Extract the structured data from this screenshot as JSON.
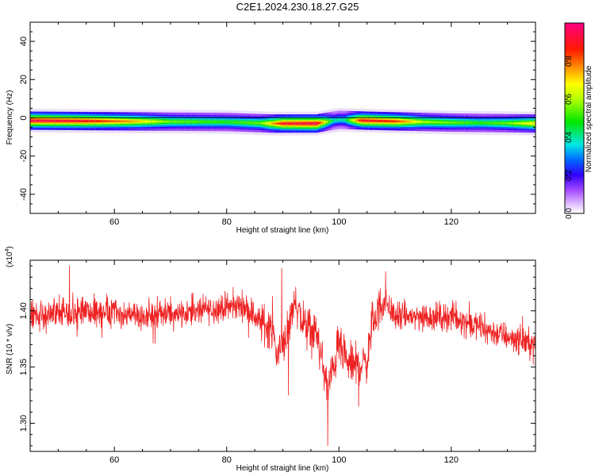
{
  "title": "C2E1.2024.230.18.27.G25",
  "chart_data": [
    {
      "type": "heatmap",
      "xlabel": "Height of straight line (km)",
      "ylabel": "Frequency (Hz)",
      "xlim": [
        45,
        135
      ],
      "ylim": [
        -50,
        50
      ],
      "xticks": [
        60,
        80,
        100,
        120
      ],
      "yticks": [
        -40,
        -20,
        0,
        20,
        40
      ],
      "colorbar": {
        "label": "Normalized spectral amplitude",
        "range": [
          0,
          1
        ],
        "ticks": [
          "0.0",
          "0.2",
          "0.4",
          "0.6",
          "0.8"
        ]
      },
      "band": {
        "center_hz": [
          {
            "x": 45,
            "f": -1.5
          },
          {
            "x": 60,
            "f": -1.8
          },
          {
            "x": 80,
            "f": -2.2
          },
          {
            "x": 88,
            "f": -3
          },
          {
            "x": 96,
            "f": -3
          },
          {
            "x": 100,
            "f": -1
          },
          {
            "x": 105,
            "f": -1.5
          },
          {
            "x": 120,
            "f": -2.5
          },
          {
            "x": 135,
            "f": -3
          }
        ],
        "intensity": [
          {
            "x": 45,
            "v": 0.95
          },
          {
            "x": 55,
            "v": 0.9
          },
          {
            "x": 63,
            "v": 0.75
          },
          {
            "x": 70,
            "v": 0.55
          },
          {
            "x": 80,
            "v": 0.5
          },
          {
            "x": 86,
            "v": 0.55
          },
          {
            "x": 90,
            "v": 0.9
          },
          {
            "x": 96,
            "v": 0.95
          },
          {
            "x": 99,
            "v": 0.4
          },
          {
            "x": 101,
            "v": 0.4
          },
          {
            "x": 104,
            "v": 0.9
          },
          {
            "x": 110,
            "v": 0.85
          },
          {
            "x": 115,
            "v": 0.6
          },
          {
            "x": 125,
            "v": 0.5
          },
          {
            "x": 130,
            "v": 0.55
          },
          {
            "x": 135,
            "v": 0.7
          }
        ]
      }
    },
    {
      "type": "line",
      "xlabel": "Height of straight line (km)",
      "ylabel": "SNR (10 * v/v)",
      "ymultiplier": "(x10",
      "ymultiplier_exp": "4",
      "xlim": [
        45,
        135
      ],
      "ylim": [
        1.275,
        1.445
      ],
      "xticks": [
        60,
        80,
        100,
        120
      ],
      "yticks": [
        "1.30",
        "1.35",
        "1.40"
      ],
      "ytick_values": [
        1.3,
        1.35,
        1.4
      ],
      "series": [
        {
          "color": "#ee2222",
          "trend": [
            {
              "x": 45,
              "y": 1.395
            },
            {
              "x": 55,
              "y": 1.4
            },
            {
              "x": 65,
              "y": 1.395
            },
            {
              "x": 75,
              "y": 1.4
            },
            {
              "x": 83,
              "y": 1.405
            },
            {
              "x": 86,
              "y": 1.39
            },
            {
              "x": 88,
              "y": 1.385
            },
            {
              "x": 89,
              "y": 1.36
            },
            {
              "x": 91,
              "y": 1.385
            },
            {
              "x": 92,
              "y": 1.41
            },
            {
              "x": 94,
              "y": 1.385
            },
            {
              "x": 96,
              "y": 1.38
            },
            {
              "x": 98,
              "y": 1.33
            },
            {
              "x": 100,
              "y": 1.37
            },
            {
              "x": 101,
              "y": 1.355
            },
            {
              "x": 103,
              "y": 1.35
            },
            {
              "x": 105,
              "y": 1.355
            },
            {
              "x": 106,
              "y": 1.39
            },
            {
              "x": 108,
              "y": 1.41
            },
            {
              "x": 110,
              "y": 1.395
            },
            {
              "x": 120,
              "y": 1.395
            },
            {
              "x": 128,
              "y": 1.38
            },
            {
              "x": 135,
              "y": 1.37
            }
          ],
          "extrema": [
            {
              "x": 98.0,
              "y": 1.28
            },
            {
              "x": 91.0,
              "y": 1.325
            },
            {
              "x": 103.5,
              "y": 1.315
            },
            {
              "x": 52.0,
              "y": 1.44
            },
            {
              "x": 89.8,
              "y": 1.438
            },
            {
              "x": 108.3,
              "y": 1.435
            }
          ]
        }
      ]
    }
  ]
}
